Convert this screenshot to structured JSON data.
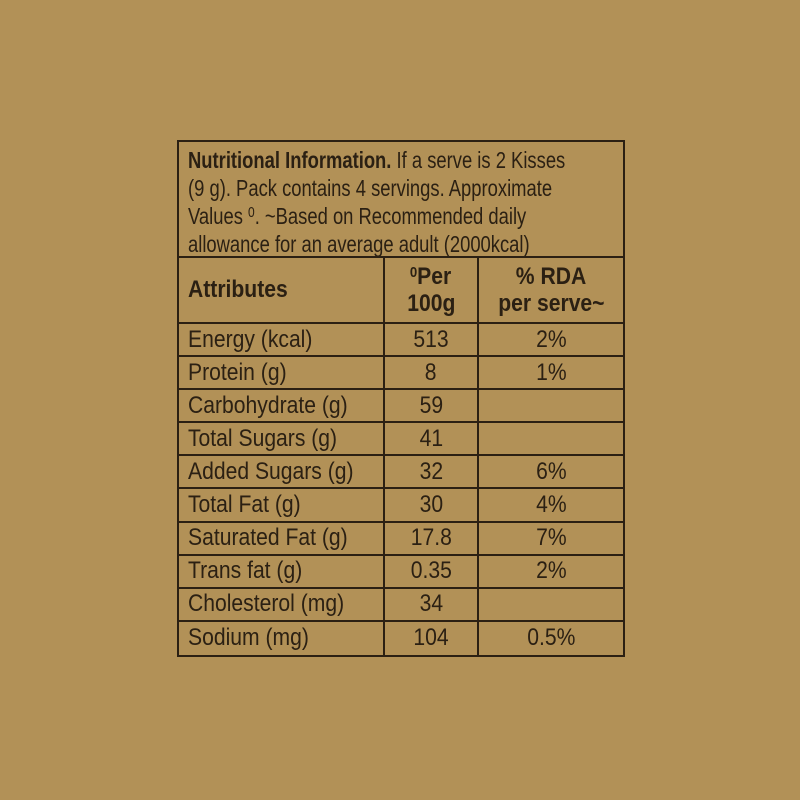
{
  "page": {
    "background_color": "#b29157",
    "ink_color": "#2b2013"
  },
  "panel": {
    "intro": {
      "line1_bold": "Nutritional Information.",
      "line1_rest": " If a serve is 2 Kisses",
      "line2": "(9 g). Pack contains 4 servings. Approximate",
      "line3_pre": "Values ",
      "line3_sup": "0",
      "line3_post": ". ~Based on Recommended daily",
      "line4": "allowance for an average adult (2000kcal)"
    },
    "table": {
      "headers": {
        "attributes": "Attributes",
        "per100_sup": "0",
        "per100_line1": "Per",
        "per100_line2": "100g",
        "rda_line1": "% RDA",
        "rda_line2": "per serve~"
      },
      "rows": [
        {
          "label": "Energy (kcal)",
          "per100g": "513",
          "rda": "2%"
        },
        {
          "label": "Protein (g)",
          "per100g": "8",
          "rda": "1%"
        },
        {
          "label": "Carbohydrate (g)",
          "per100g": "59",
          "rda": ""
        },
        {
          "label": "Total Sugars (g)",
          "per100g": "41",
          "rda": ""
        },
        {
          "label": "Added Sugars (g)",
          "per100g": "32",
          "rda": "6%"
        },
        {
          "label": "Total Fat (g)",
          "per100g": "30",
          "rda": "4%"
        },
        {
          "label": "Saturated Fat (g)",
          "per100g": "17.8",
          "rda": "7%"
        },
        {
          "label": "Trans fat (g)",
          "per100g": "0.35",
          "rda": "2%"
        },
        {
          "label": "Cholesterol (mg)",
          "per100g": "34",
          "rda": ""
        },
        {
          "label": "Sodium (mg)",
          "per100g": "104",
          "rda": "0.5%"
        }
      ]
    }
  }
}
